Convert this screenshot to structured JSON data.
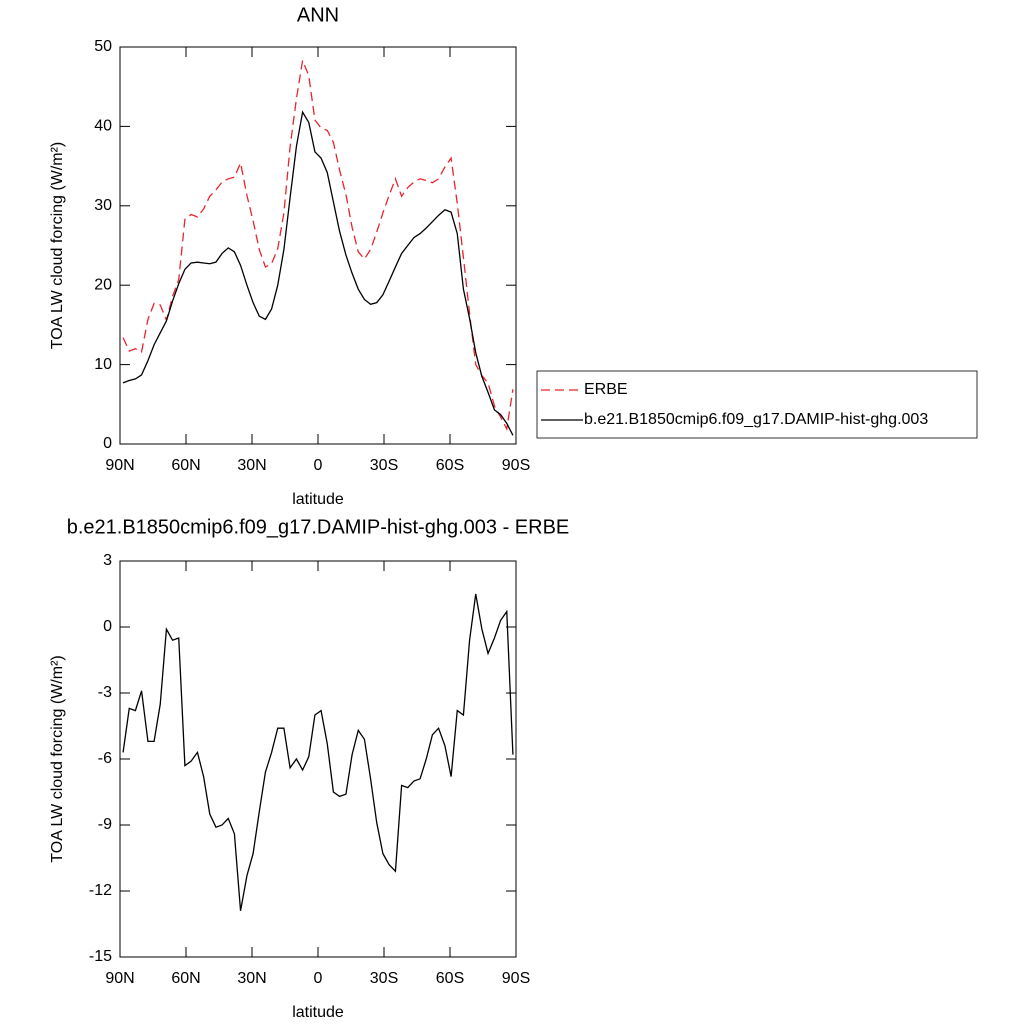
{
  "chart_data": [
    {
      "type": "line",
      "title": "ANN",
      "xlabel": "latitude",
      "ylabel": "TOA LW cloud forcing (W/m²)",
      "x": [
        88.6,
        85.8,
        83.0,
        80.2,
        77.3,
        74.5,
        71.7,
        68.9,
        66.1,
        63.3,
        60.5,
        57.7,
        54.8,
        52.0,
        49.2,
        46.4,
        43.6,
        40.8,
        38.0,
        35.2,
        32.3,
        29.5,
        26.7,
        23.9,
        21.1,
        18.3,
        15.5,
        12.7,
        9.8,
        7.0,
        4.2,
        1.4,
        -1.4,
        -4.2,
        -7.0,
        -9.8,
        -12.7,
        -15.5,
        -18.3,
        -21.1,
        -23.9,
        -26.7,
        -29.5,
        -32.3,
        -35.2,
        -38.0,
        -40.8,
        -43.6,
        -46.4,
        -49.2,
        -52.0,
        -54.8,
        -57.7,
        -60.5,
        -63.3,
        -66.1,
        -68.9,
        -71.7,
        -74.5,
        -77.3,
        -80.2,
        -83.0,
        -85.8,
        -88.6
      ],
      "xlim": [
        90,
        -90
      ],
      "xticks": [
        {
          "value": 90,
          "label": "90N"
        },
        {
          "value": 60,
          "label": "60N"
        },
        {
          "value": 30,
          "label": "30N"
        },
        0,
        {
          "value": -30,
          "label": "30S"
        },
        {
          "value": -60,
          "label": "60S"
        },
        {
          "value": -90,
          "label": "90S"
        }
      ],
      "ylim": [
        0,
        50
      ],
      "yticks": [
        0,
        10,
        20,
        30,
        40,
        50
      ],
      "legend": "right",
      "series": [
        {
          "name": "ERBE",
          "color": "#e8242c",
          "linestyle": "dashed",
          "values": [
            13.4,
            11.7,
            12.0,
            11.6,
            15.7,
            17.7,
            17.5,
            15.6,
            18.6,
            20.7,
            28.3,
            28.9,
            28.6,
            29.6,
            31.2,
            32.0,
            33.0,
            33.4,
            33.6,
            35.4,
            31.3,
            28.1,
            24.5,
            22.3,
            22.7,
            24.6,
            29.1,
            37.4,
            43.5,
            48.3,
            46.4,
            40.8,
            39.8,
            39.5,
            38.0,
            34.5,
            31.4,
            27.3,
            24.2,
            23.3,
            24.5,
            26.7,
            29.1,
            31.3,
            33.4,
            31.2,
            32.3,
            33.0,
            33.4,
            33.2,
            32.9,
            33.4,
            34.9,
            36.0,
            30.3,
            23.5,
            16.4,
            10.0,
            8.6,
            7.7,
            4.8,
            3.4,
            1.9,
            6.9
          ]
        },
        {
          "name": "b.e21.B1850cmip6.f09_g17.DAMIP-hist-ghg.003",
          "color": "#000000",
          "linestyle": "solid",
          "values": [
            7.7,
            8.0,
            8.2,
            8.7,
            10.5,
            12.5,
            14.0,
            15.5,
            18.0,
            20.2,
            22.0,
            22.8,
            22.9,
            22.8,
            22.7,
            22.9,
            24.0,
            24.7,
            24.2,
            22.5,
            20.0,
            17.8,
            16.1,
            15.7,
            17.0,
            20.0,
            24.5,
            31.0,
            37.5,
            41.8,
            40.5,
            36.8,
            36.0,
            34.2,
            30.5,
            26.8,
            23.8,
            21.5,
            19.5,
            18.2,
            17.6,
            17.8,
            18.8,
            20.5,
            22.3,
            24.0,
            25.0,
            26.0,
            26.5,
            27.2,
            28.0,
            28.8,
            29.5,
            29.2,
            26.5,
            19.5,
            15.8,
            11.5,
            8.5,
            6.5,
            4.3,
            3.7,
            2.6,
            1.1
          ]
        }
      ]
    },
    {
      "type": "line",
      "title": "b.e21.B1850cmip6.f09_g17.DAMIP-hist-ghg.003 - ERBE",
      "xlabel": "latitude",
      "ylabel": "TOA LW cloud forcing (W/m²)",
      "x": [
        88.6,
        85.8,
        83.0,
        80.2,
        77.3,
        74.5,
        71.7,
        68.9,
        66.1,
        63.3,
        60.5,
        57.7,
        54.8,
        52.0,
        49.2,
        46.4,
        43.6,
        40.8,
        38.0,
        35.2,
        32.3,
        29.5,
        26.7,
        23.9,
        21.1,
        18.3,
        15.5,
        12.7,
        9.8,
        7.0,
        4.2,
        1.4,
        -1.4,
        -4.2,
        -7.0,
        -9.8,
        -12.7,
        -15.5,
        -18.3,
        -21.1,
        -23.9,
        -26.7,
        -29.5,
        -32.3,
        -35.2,
        -38.0,
        -40.8,
        -43.6,
        -46.4,
        -49.2,
        -52.0,
        -54.8,
        -57.7,
        -60.5,
        -63.3,
        -66.1,
        -68.9,
        -71.7,
        -74.5,
        -77.3,
        -80.2,
        -83.0,
        -85.8,
        -88.6
      ],
      "xlim": [
        90,
        -90
      ],
      "xticks": [
        {
          "value": 90,
          "label": "90N"
        },
        {
          "value": 60,
          "label": "60N"
        },
        {
          "value": 30,
          "label": "30N"
        },
        0,
        {
          "value": -30,
          "label": "30S"
        },
        {
          "value": -60,
          "label": "60S"
        },
        {
          "value": -90,
          "label": "90S"
        }
      ],
      "ylim": [
        -15,
        3
      ],
      "yticks": [
        -15,
        -12,
        -9,
        -6,
        -3,
        0,
        3
      ],
      "color": "#000000",
      "values": [
        -5.7,
        -3.7,
        -3.8,
        -2.9,
        -5.2,
        -5.2,
        -3.5,
        -0.1,
        -0.6,
        -0.5,
        -6.3,
        -6.1,
        -5.7,
        -6.8,
        -8.5,
        -9.1,
        -9.0,
        -8.7,
        -9.4,
        -12.9,
        -11.3,
        -10.3,
        -8.4,
        -6.6,
        -5.7,
        -4.6,
        -4.6,
        -6.4,
        -6.0,
        -6.5,
        -5.9,
        -4.0,
        -3.8,
        -5.3,
        -7.5,
        -7.7,
        -7.6,
        -5.8,
        -4.7,
        -5.1,
        -6.9,
        -8.9,
        -10.3,
        -10.8,
        -11.1,
        -7.2,
        -7.3,
        -7.0,
        -6.9,
        -6.0,
        -4.9,
        -4.6,
        -5.4,
        -6.8,
        -3.8,
        -4.0,
        -0.6,
        1.5,
        -0.1,
        -1.2,
        -0.5,
        0.3,
        0.7,
        -5.8
      ]
    }
  ]
}
